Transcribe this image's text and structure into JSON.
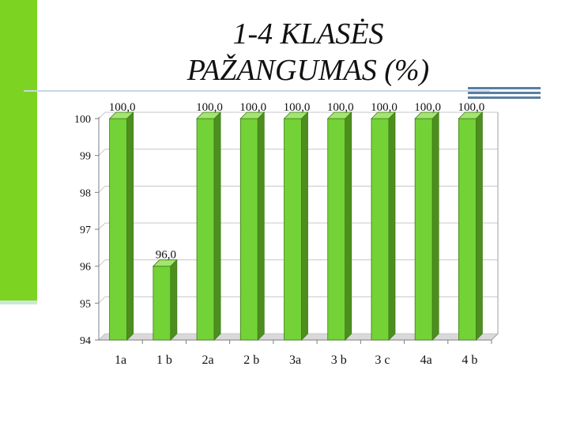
{
  "slide": {
    "title_line1": "1-4 KLASĖS",
    "title_line2": "PAŽANGUMAS (%)"
  },
  "colors": {
    "accent": "#7cd321",
    "bar_front": "#73d236",
    "bar_top": "#a3e66f",
    "bar_side": "#4d8f1f",
    "deco_blue": "#5a7fa3"
  },
  "chart_data": {
    "type": "bar",
    "categories": [
      "1a",
      "1 b",
      "2a",
      "2 b",
      "3a",
      "3 b",
      "3 c",
      "4a",
      "4 b"
    ],
    "values": [
      100.0,
      96.0,
      100.0,
      100.0,
      100.0,
      100.0,
      100.0,
      100.0,
      100.0
    ],
    "value_labels": [
      "100,0",
      "96,0",
      "100,0",
      "100,0",
      "100,0",
      "100,0",
      "100,0",
      "100,0",
      "100,0"
    ],
    "y_ticks": [
      "94",
      "95",
      "96",
      "97",
      "98",
      "99",
      "100"
    ],
    "ylim": [
      94,
      100
    ],
    "grid": true,
    "legend": "none"
  }
}
